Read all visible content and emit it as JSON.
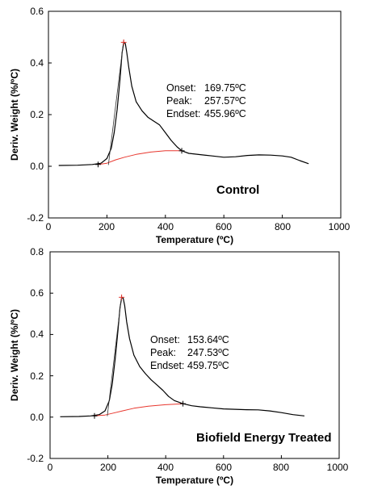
{
  "chart_data": [
    {
      "type": "line",
      "title": "Control",
      "xlabel": "Temperature (ºC)",
      "ylabel": "Deriv. Weight (%/ºC)",
      "xlim": [
        0,
        1000
      ],
      "ylim": [
        -0.2,
        0.6
      ],
      "xticks": [
        "0",
        "200",
        "400",
        "600",
        "800",
        "1000"
      ],
      "yticks": [
        "-0.2",
        "0.0",
        "0.2",
        "0.4",
        "0.6"
      ],
      "annotations": {
        "onset_label": "Onset:",
        "onset_value": "169.75ºC",
        "peak_label": "Peak:",
        "peak_value": "257.57ºC",
        "endset_label": "Endset:",
        "endset_value": "455.96ºC"
      },
      "series": [
        {
          "color": "#000000",
          "x": [
            35,
            100,
            150,
            180,
            200,
            215,
            225,
            235,
            245,
            252,
            258,
            263,
            268,
            275,
            285,
            300,
            320,
            340,
            360,
            380,
            400,
            420,
            440,
            456,
            480,
            520,
            560,
            600,
            640,
            680,
            720,
            760,
            800,
            830,
            860,
            890
          ],
          "y": [
            0.003,
            0.004,
            0.007,
            0.012,
            0.03,
            0.07,
            0.13,
            0.22,
            0.34,
            0.44,
            0.48,
            0.475,
            0.44,
            0.38,
            0.31,
            0.25,
            0.215,
            0.19,
            0.175,
            0.16,
            0.13,
            0.1,
            0.075,
            0.06,
            0.05,
            0.045,
            0.04,
            0.035,
            0.037,
            0.042,
            0.044,
            0.043,
            0.04,
            0.035,
            0.022,
            0.01
          ]
        },
        {
          "color": "#e8372e",
          "x": [
            169.75,
            200,
            230,
            260,
            300,
            350,
            400,
            455.96
          ],
          "y": [
            0.007,
            0.012,
            0.025,
            0.035,
            0.046,
            0.055,
            0.06,
            0.06
          ]
        }
      ],
      "markers": {
        "plus": [
          [
            169.75,
            0.007
          ],
          [
            455.96,
            0.06
          ],
          [
            257.57,
            0.48
          ]
        ],
        "tangent": [
          [
            205,
            0.005
          ],
          [
            257.57,
            0.49
          ]
        ]
      }
    },
    {
      "type": "line",
      "title": "Biofield Energy Treated",
      "xlabel": "Temperature (ºC)",
      "ylabel": "Deriv. Weight (%/ºC)",
      "xlim": [
        0,
        1000
      ],
      "ylim": [
        -0.2,
        0.8
      ],
      "xticks": [
        "0",
        "200",
        "400",
        "600",
        "800",
        "1000"
      ],
      "yticks": [
        "-0.2",
        "0.0",
        "0.2",
        "0.4",
        "0.6",
        "0.8"
      ],
      "annotations": {
        "onset_label": "Onset:",
        "onset_value": "153.64ºC",
        "peak_label": "Peak:",
        "peak_value": "247.53ºC",
        "endset_label": "Endset:",
        "endset_value": "459.75ºC"
      },
      "series": [
        {
          "color": "#000000",
          "x": [
            35,
            100,
            140,
            170,
            190,
            205,
            215,
            225,
            235,
            242,
            248,
            253,
            258,
            265,
            275,
            290,
            310,
            330,
            350,
            370,
            390,
            410,
            430,
            460,
            490,
            520,
            560,
            600,
            640,
            680,
            720,
            760,
            800,
            840,
            880
          ],
          "y": [
            0.002,
            0.003,
            0.006,
            0.012,
            0.03,
            0.08,
            0.16,
            0.28,
            0.42,
            0.53,
            0.58,
            0.575,
            0.54,
            0.46,
            0.38,
            0.3,
            0.245,
            0.21,
            0.18,
            0.155,
            0.13,
            0.1,
            0.08,
            0.065,
            0.055,
            0.05,
            0.045,
            0.04,
            0.038,
            0.036,
            0.035,
            0.03,
            0.022,
            0.012,
            0.006
          ]
        },
        {
          "color": "#e8372e",
          "x": [
            153.64,
            190,
            220,
            250,
            290,
            340,
            400,
            459.75
          ],
          "y": [
            0.006,
            0.01,
            0.02,
            0.03,
            0.043,
            0.053,
            0.06,
            0.065
          ]
        }
      ],
      "markers": {
        "plus": [
          [
            153.64,
            0.006
          ],
          [
            459.75,
            0.065
          ],
          [
            247.53,
            0.58
          ]
        ],
        "tangent": [
          [
            198,
            0.005
          ],
          [
            247.53,
            0.59
          ]
        ]
      }
    }
  ]
}
